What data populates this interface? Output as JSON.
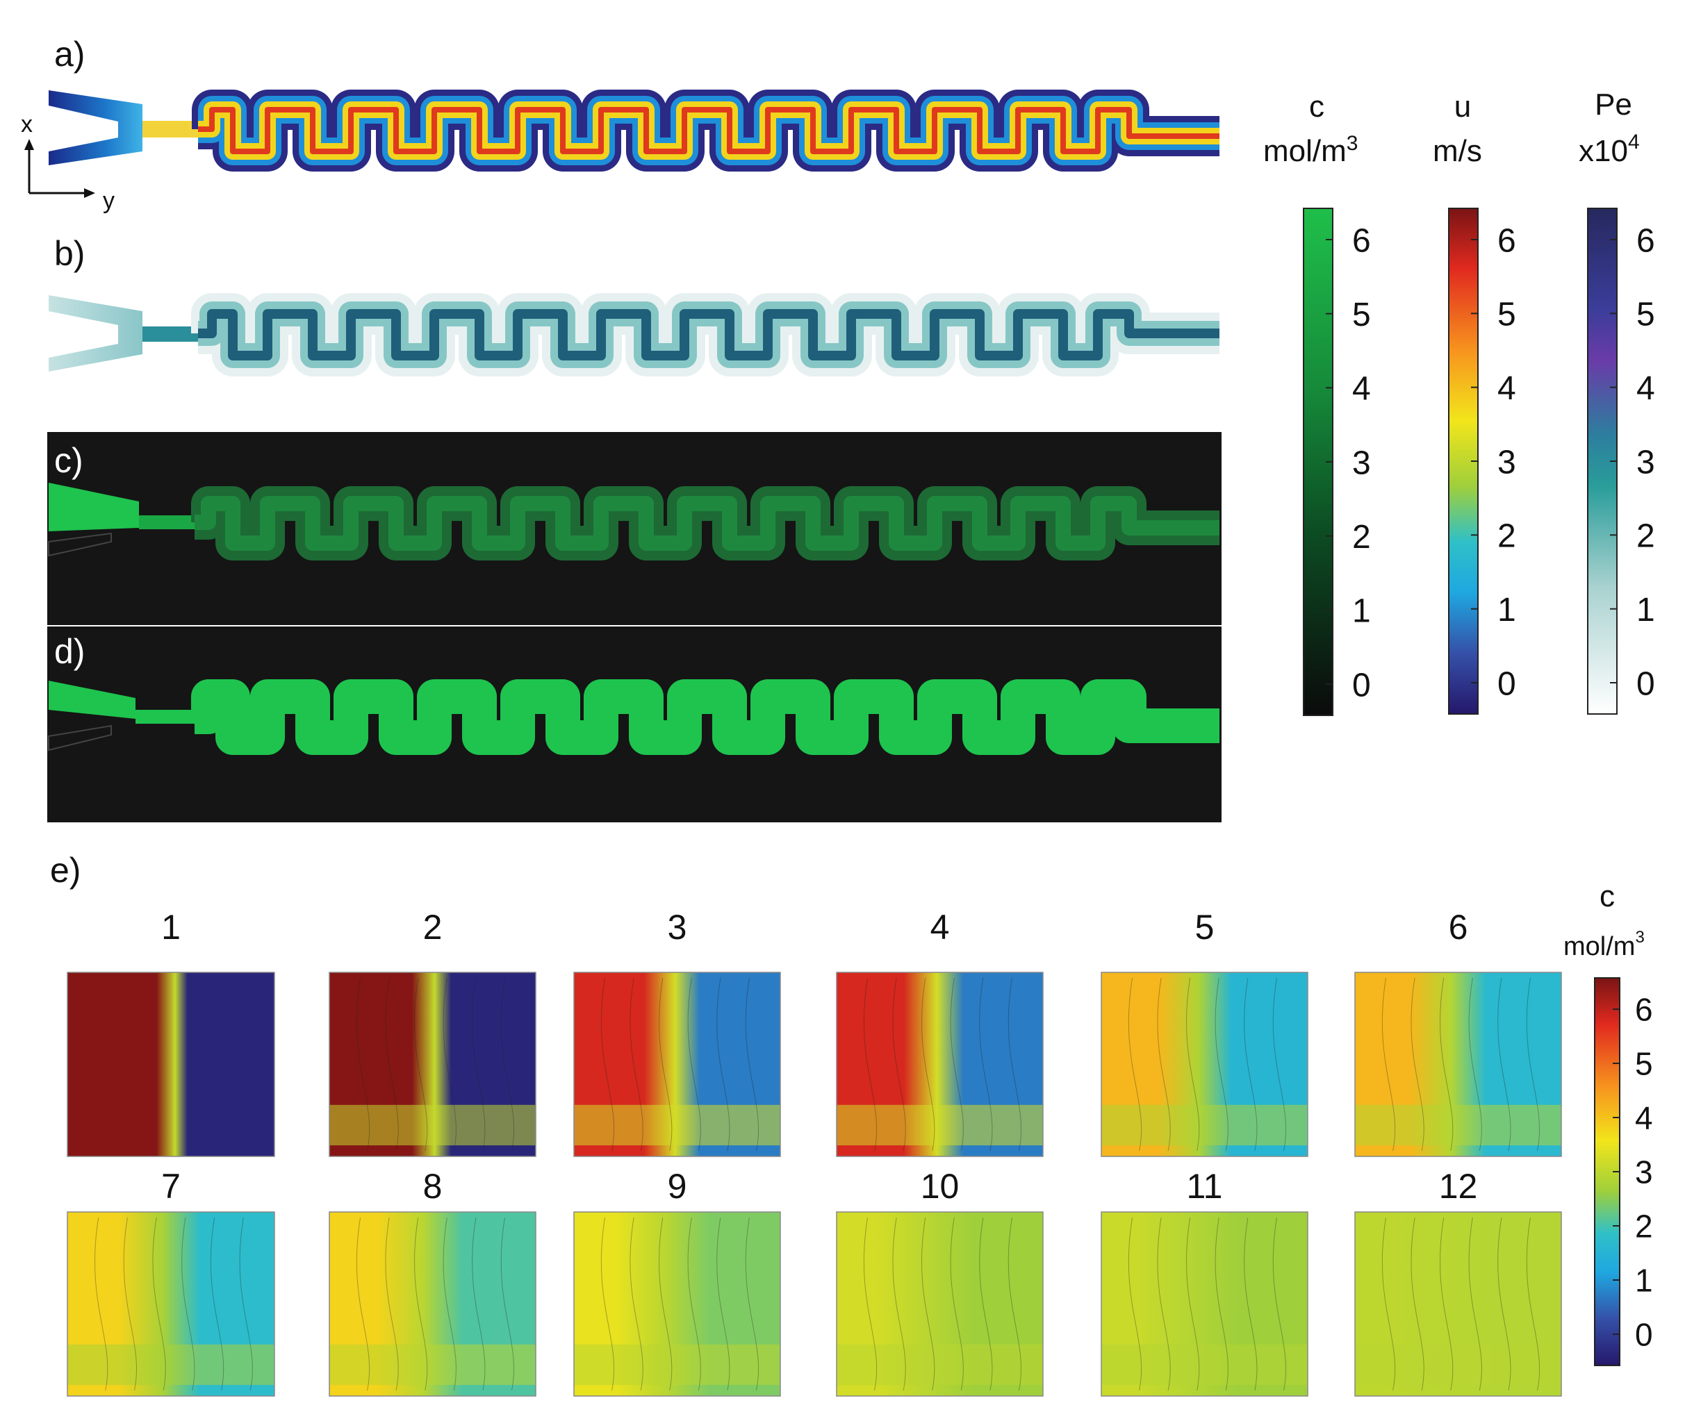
{
  "panels": {
    "a": "a)",
    "b": "b)",
    "c": "c)",
    "d": "d)",
    "e": "e)"
  },
  "axes": {
    "x": "x",
    "y": "y"
  },
  "colorbars": {
    "c": {
      "symbol": "c",
      "unit": "mol/m",
      "unit_sup": "3",
      "ticks": [
        "6",
        "5",
        "4",
        "3",
        "2",
        "1",
        "0"
      ],
      "colormap": "black-to-green"
    },
    "u": {
      "symbol": "u",
      "unit": "m/s",
      "unit_sup": "",
      "ticks": [
        "6",
        "5",
        "4",
        "3",
        "2",
        "1",
        "0"
      ],
      "colormap": "rainbow"
    },
    "pe": {
      "symbol": "Pe",
      "unit": "x10",
      "unit_sup": "4",
      "ticks": [
        "6",
        "5",
        "4",
        "3",
        "2",
        "1",
        "0"
      ],
      "colormap": "white-to-navy"
    }
  },
  "panel_e": {
    "colorbar": {
      "symbol": "c",
      "unit": "mol/m",
      "unit_sup": "3",
      "ticks": [
        "6",
        "5",
        "4",
        "3",
        "2",
        "1",
        "0"
      ],
      "colormap": "rainbow"
    },
    "subplots": [
      {
        "label": "1",
        "left": 6.5,
        "right": 0.2,
        "mix": 0.0
      },
      {
        "label": "2",
        "left": 6.5,
        "right": 0.2,
        "mix": 0.1
      },
      {
        "label": "3",
        "left": 5.8,
        "right": 1.2,
        "mix": 0.3
      },
      {
        "label": "4",
        "left": 5.8,
        "right": 1.2,
        "mix": 0.35
      },
      {
        "label": "5",
        "left": 4.3,
        "right": 2.0,
        "mix": 0.5
      },
      {
        "label": "6",
        "left": 4.3,
        "right": 2.1,
        "mix": 0.55
      },
      {
        "label": "7",
        "left": 4.0,
        "right": 2.2,
        "mix": 0.6
      },
      {
        "label": "8",
        "left": 4.0,
        "right": 2.5,
        "mix": 0.65
      },
      {
        "label": "9",
        "left": 3.7,
        "right": 2.8,
        "mix": 0.75
      },
      {
        "label": "10",
        "left": 3.5,
        "right": 3.0,
        "mix": 0.8
      },
      {
        "label": "11",
        "left": 3.4,
        "right": 3.0,
        "mix": 0.85
      },
      {
        "label": "12",
        "left": 3.3,
        "right": 3.2,
        "mix": 0.95
      }
    ]
  }
}
